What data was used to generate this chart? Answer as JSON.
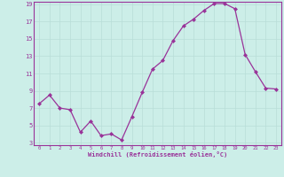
{
  "x": [
    0,
    1,
    2,
    3,
    4,
    5,
    6,
    7,
    8,
    9,
    10,
    11,
    12,
    13,
    14,
    15,
    16,
    17,
    18,
    19,
    20,
    21,
    22,
    23
  ],
  "y": [
    7.5,
    8.5,
    7.0,
    6.8,
    4.2,
    5.5,
    3.8,
    4.0,
    3.3,
    6.0,
    8.8,
    11.5,
    12.5,
    14.8,
    16.5,
    17.3,
    18.3,
    19.1,
    19.1,
    18.5,
    13.2,
    11.2,
    9.3,
    9.2
  ],
  "line_color": "#993399",
  "marker_color": "#993399",
  "bg_color": "#cceee8",
  "grid_color": "#aadddd",
  "xlabel": "Windchill (Refroidissement éolien,°C)",
  "xlabel_color": "#993399",
  "tick_color": "#993399",
  "ylim": [
    3,
    19
  ],
  "yticks": [
    3,
    5,
    7,
    9,
    11,
    13,
    15,
    17,
    19
  ],
  "xtick_labels": [
    "0",
    "1",
    "2",
    "3",
    "4",
    "5",
    "6",
    "7",
    "8",
    "9",
    "10",
    "11",
    "12",
    "13",
    "14",
    "15",
    "16",
    "17",
    "18",
    "19",
    "20",
    "21",
    "22",
    "23"
  ],
  "xticks": [
    0,
    1,
    2,
    3,
    4,
    5,
    6,
    7,
    8,
    9,
    10,
    11,
    12,
    13,
    14,
    15,
    16,
    17,
    18,
    19,
    20,
    21,
    22,
    23
  ],
  "xlim": [
    -0.5,
    23.5
  ]
}
